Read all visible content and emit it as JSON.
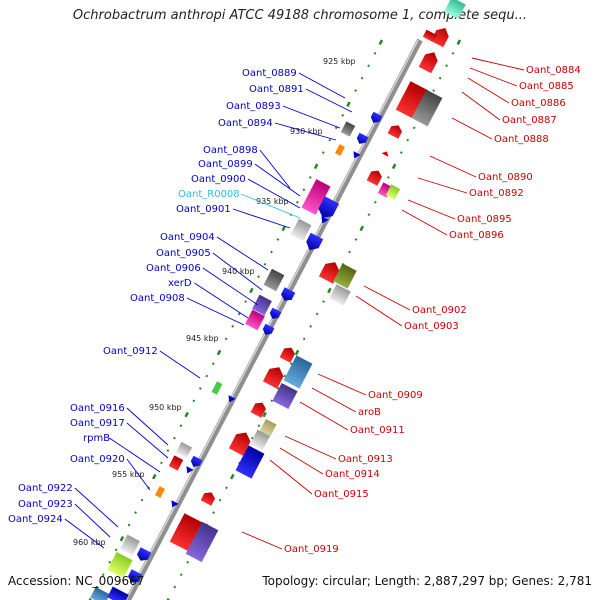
{
  "title": "Ochrobactrum anthropi ATCC 49188 chromosome 1, complete sequ...",
  "footer": {
    "accession_label": "Accession: NC_009667",
    "info_label": "Topology: circular; Length: 2,887,297 bp; Genes: 2,781"
  },
  "colors": {
    "left_label": "#0000cc",
    "right_label": "#cc0000",
    "rna_label": "#33bbdd",
    "backbone": "#9a9a9a",
    "tick": "#228822"
  },
  "kbp_ticks": [
    "925 kbp",
    "930 kbp",
    "935 kbp",
    "940 kbp",
    "945 kbp",
    "950 kbp",
    "955 kbp",
    "960 kbp"
  ],
  "left_labels": [
    "Oant_0889",
    "Oant_0891",
    "Oant_0893",
    "Oant_0894",
    "Oant_0898",
    "Oant_0899",
    "Oant_0900",
    "Oant_R0008",
    "Oant_0901",
    "Oant_0904",
    "Oant_0905",
    "Oant_0906",
    "xerD",
    "Oant_0908",
    "Oant_0912",
    "Oant_0916",
    "Oant_0917",
    "rpmB",
    "Oant_0920",
    "Oant_0922",
    "Oant_0923",
    "Oant_0924"
  ],
  "right_labels": [
    "Oant_0884",
    "Oant_0885",
    "Oant_0886",
    "Oant_0887",
    "Oant_0888",
    "Oant_0890",
    "Oant_0892",
    "Oant_0895",
    "Oant_0896",
    "Oant_0902",
    "Oant_0903",
    "Oant_0909",
    "aroB",
    "Oant_0911",
    "Oant_0913",
    "Oant_0914",
    "Oant_0915",
    "Oant_0919"
  ]
}
